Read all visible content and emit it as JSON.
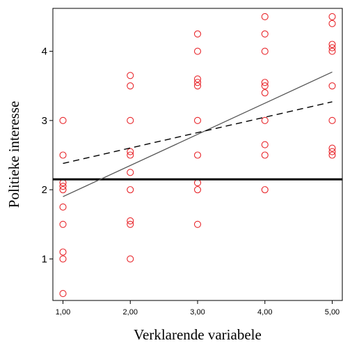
{
  "chart_data": {
    "type": "scatter",
    "xlabel": "Verklarende variabele",
    "ylabel": "Politieke interesse",
    "xlim": [
      0.85,
      5.15
    ],
    "ylim": [
      0.4,
      4.62
    ],
    "x_ticks": [
      1,
      2,
      3,
      4,
      5
    ],
    "x_tick_labels": [
      "1,00",
      "2,00",
      "3,00",
      "4,00",
      "5,00"
    ],
    "y_ticks": [
      1,
      2,
      3,
      4
    ],
    "y_tick_labels": [
      "1",
      "2",
      "3",
      "4"
    ],
    "grid": false,
    "points": [
      [
        1,
        0.5
      ],
      [
        1,
        1
      ],
      [
        1,
        1.1
      ],
      [
        1,
        1.5
      ],
      [
        1,
        1.75
      ],
      [
        1,
        2
      ],
      [
        1,
        2.05
      ],
      [
        1,
        2.1
      ],
      [
        1,
        2.5
      ],
      [
        1,
        3
      ],
      [
        2,
        1
      ],
      [
        2,
        1.5
      ],
      [
        2,
        1.55
      ],
      [
        2,
        2
      ],
      [
        2,
        2.25
      ],
      [
        2,
        2.5
      ],
      [
        2,
        2.55
      ],
      [
        2,
        3
      ],
      [
        2,
        3.5
      ],
      [
        2,
        3.65
      ],
      [
        3,
        1.5
      ],
      [
        3,
        2
      ],
      [
        3,
        2.1
      ],
      [
        3,
        2.5
      ],
      [
        3,
        3
      ],
      [
        3,
        3.5
      ],
      [
        3,
        3.55
      ],
      [
        3,
        3.6
      ],
      [
        3,
        4
      ],
      [
        3,
        4.25
      ],
      [
        4,
        2
      ],
      [
        4,
        2.5
      ],
      [
        4,
        2.65
      ],
      [
        4,
        3
      ],
      [
        4,
        3.4
      ],
      [
        4,
        3.5
      ],
      [
        4,
        3.55
      ],
      [
        4,
        4
      ],
      [
        4,
        4.25
      ],
      [
        4,
        4.5
      ],
      [
        5,
        2.5
      ],
      [
        5,
        2.55
      ],
      [
        5,
        2.6
      ],
      [
        5,
        3
      ],
      [
        5,
        3.5
      ],
      [
        5,
        4
      ],
      [
        5,
        4.05
      ],
      [
        5,
        4.1
      ],
      [
        5,
        4.4
      ],
      [
        5,
        4.5
      ]
    ],
    "lines": [
      {
        "style": "solid-thick",
        "x": [
          0.85,
          5.15
        ],
        "y": [
          2.15,
          2.15
        ]
      },
      {
        "style": "solid-thin",
        "x": [
          1,
          5
        ],
        "y": [
          1.9,
          3.7
        ]
      },
      {
        "style": "dashed",
        "x": [
          1,
          5
        ],
        "y": [
          2.38,
          3.27
        ]
      }
    ],
    "colors": {
      "points": "#e8262b",
      "lines": "#000000",
      "thin_line": "#555555"
    }
  }
}
